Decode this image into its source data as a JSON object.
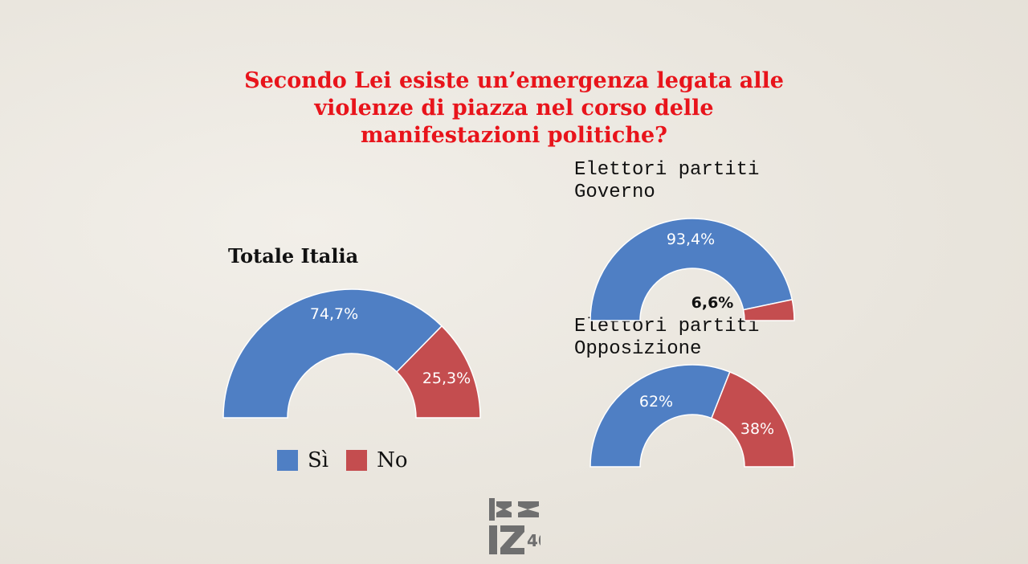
{
  "title_lines": [
    "Secondo Lei esiste un’emergenza legata alle",
    "violenze di piazza nel corso delle",
    "manifestazioni politiche?"
  ],
  "colors": {
    "si": "#4f7fc4",
    "no": "#c44d4f",
    "title": "#e8141b"
  },
  "legend": [
    {
      "label": "Sì",
      "color": "#4f7fc4"
    },
    {
      "label": "No",
      "color": "#c44d4f"
    }
  ],
  "logo": {
    "icon": "izi-logo-icon"
  },
  "chart_data": [
    {
      "type": "pie",
      "subtype": "half-donut",
      "title_lines": [
        "Totale Italia"
      ],
      "categories": [
        "Sì",
        "No"
      ],
      "values": [
        74.7,
        25.3
      ],
      "labels": [
        "74,7%",
        "25,3%"
      ]
    },
    {
      "type": "pie",
      "subtype": "half-donut",
      "title_lines": [
        "Elettori partiti",
        "Governo"
      ],
      "categories": [
        "Sì",
        "No"
      ],
      "values": [
        93.4,
        6.6
      ],
      "labels": [
        "93,4%",
        "6,6%"
      ]
    },
    {
      "type": "pie",
      "subtype": "half-donut",
      "title_lines": [
        "Elettori partiti",
        "Opposizione"
      ],
      "categories": [
        "Sì",
        "No"
      ],
      "values": [
        62,
        38
      ],
      "labels": [
        "62%",
        "38%"
      ]
    }
  ]
}
